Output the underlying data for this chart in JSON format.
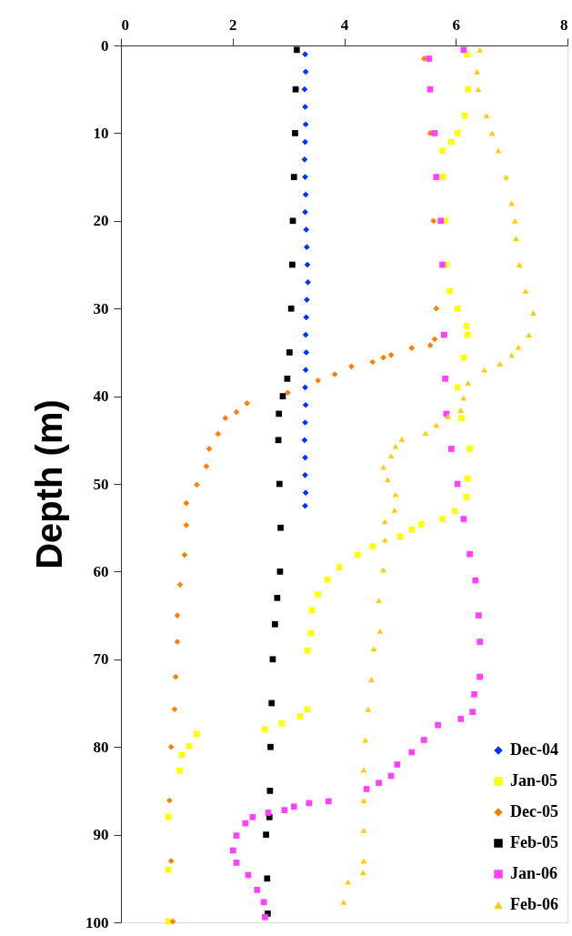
{
  "chart_data": {
    "type": "scatter",
    "ylabel": "Depth (m)",
    "xlim": [
      0,
      8
    ],
    "xticks": [
      0,
      2,
      4,
      6,
      8
    ],
    "ylim": [
      100,
      0
    ],
    "yticks": [
      0,
      10,
      20,
      30,
      40,
      50,
      60,
      70,
      80,
      90,
      100
    ],
    "grid": false,
    "legend": "bottom right",
    "series": [
      {
        "name": "Dec-04",
        "color": "#0033ff",
        "marker": "diamond",
        "x": [
          3.3,
          3.31,
          3.29,
          3.3,
          3.31,
          3.3,
          3.29,
          3.3,
          3.31,
          3.3,
          3.32,
          3.33,
          3.34,
          3.35,
          3.33,
          3.32,
          3.31,
          3.32,
          3.31,
          3.3,
          3.31,
          3.3,
          3.29,
          3.3,
          3.3,
          3.31,
          3.3
        ],
        "values": [
          1,
          3,
          5,
          7,
          9,
          11,
          13,
          15,
          17,
          19,
          21,
          23,
          25,
          27,
          29,
          31,
          33,
          35,
          37,
          39,
          41,
          43,
          45,
          47,
          49,
          51,
          52.5
        ]
      },
      {
        "name": "Jan-05",
        "color": "#ffff00",
        "marker": "square",
        "x": [
          6.2,
          6.22,
          6.16,
          6.03,
          5.92,
          5.76,
          5.77,
          5.81,
          5.83,
          5.89,
          6.03,
          6.19,
          6.21,
          6.14,
          6.03,
          6.1,
          6.25,
          6.21,
          6.19,
          5.98,
          5.76,
          5.38,
          5.21,
          5.0,
          4.51,
          4.24,
          3.91,
          3.7,
          3.53,
          3.42,
          3.4,
          3.34,
          3.34,
          3.21,
          2.88,
          2.58,
          1.36,
          1.22,
          1.09,
          1.05,
          0.85,
          0.85,
          0.85
        ],
        "values": [
          1,
          5,
          8,
          10,
          11,
          12,
          15,
          20,
          25,
          28,
          30,
          32,
          33,
          35.6,
          39,
          42.5,
          46,
          49.4,
          51.5,
          53.1,
          54,
          54.6,
          55.2,
          56,
          57.1,
          58.1,
          59.5,
          60.9,
          62.6,
          64.4,
          67,
          69,
          75.7,
          76.5,
          77.3,
          78,
          78.5,
          79.9,
          80.9,
          82.7,
          88,
          94,
          99.9
        ]
      },
      {
        "name": "Dec-05",
        "color": "#ff7f00",
        "marker": "diamond",
        "x": [
          5.43,
          5.54,
          5.6,
          5.65,
          5.62,
          5.54,
          5.21,
          4.84,
          4.7,
          4.51,
          4.13,
          3.83,
          3.53,
          2.99,
          2.26,
          2.07,
          1.87,
          1.74,
          1.58,
          1.53,
          1.36,
          1.17,
          1.17,
          1.14,
          1.06,
          1.01,
          1.01,
          0.98,
          0.96,
          0.9,
          0.87,
          0.9,
          0.93
        ],
        "values": [
          1.5,
          10,
          20,
          30,
          33.5,
          34.2,
          34.5,
          35.3,
          35.6,
          36.1,
          36.6,
          37.5,
          38.2,
          39.6,
          40.8,
          41.8,
          42.5,
          44.3,
          46,
          48,
          50.1,
          52.2,
          54.7,
          58.1,
          61.5,
          65,
          68,
          72,
          75.7,
          80,
          86.1,
          93,
          99.9
        ]
      },
      {
        "name": "Feb-05",
        "color": "#000000",
        "marker": "square",
        "x": [
          3.15,
          3.13,
          3.12,
          3.1,
          3.08,
          3.07,
          3.05,
          3.02,
          2.98,
          2.9,
          2.83,
          2.82,
          2.84,
          2.86,
          2.85,
          2.8,
          2.76,
          2.72,
          2.7,
          2.68,
          2.67,
          2.66,
          2.6,
          2.62,
          2.63
        ],
        "values": [
          0.5,
          5,
          10,
          15,
          20,
          25,
          30,
          35,
          38,
          40,
          42,
          45,
          50,
          55,
          60,
          63,
          66,
          70,
          75,
          80,
          85,
          88,
          90,
          95,
          99
        ]
      },
      {
        "name": "Jan-06",
        "color": "#ff40ff",
        "marker": "square",
        "x": [
          6.14,
          5.52,
          5.54,
          5.62,
          5.65,
          5.73,
          5.76,
          5.79,
          5.81,
          5.83,
          5.92,
          6.03,
          6.14,
          6.25,
          6.35,
          6.41,
          6.43,
          6.43,
          6.33,
          6.3,
          6.09,
          5.68,
          5.43,
          5.21,
          4.95,
          4.84,
          4.62,
          4.4,
          3.72,
          3.37,
          3.1,
          2.93,
          2.64,
          2.36,
          2.23,
          2.07,
          2.01,
          2.07,
          2.28,
          2.44,
          2.56,
          2.58
        ],
        "values": [
          0.5,
          1.5,
          5,
          10,
          15,
          20,
          25,
          33,
          38,
          42,
          46,
          50,
          54,
          58,
          61,
          65,
          68,
          72,
          74,
          76,
          76.8,
          77.5,
          79.2,
          80.6,
          82,
          83.3,
          84.1,
          84.8,
          86.2,
          86.4,
          86.8,
          87.2,
          87.5,
          88,
          88.7,
          90.1,
          91.8,
          93.2,
          94.6,
          96.3,
          97.7,
          99.4
        ]
      },
      {
        "name": "Feb-06",
        "color": "#ffcc00",
        "marker": "triangle",
        "x": [
          6.43,
          6.38,
          6.4,
          6.55,
          6.65,
          6.76,
          6.9,
          7.0,
          7.06,
          7.08,
          7.14,
          7.25,
          7.39,
          7.31,
          7.12,
          7.0,
          6.79,
          6.51,
          6.22,
          6.14,
          6.09,
          5.86,
          5.65,
          5.46,
          5.03,
          4.92,
          4.84,
          4.7,
          4.78,
          4.92,
          4.9,
          4.73,
          4.73,
          4.7,
          4.62,
          4.64,
          4.53,
          4.49,
          4.43,
          4.38,
          4.35,
          4.35,
          4.35,
          4.35,
          4.34,
          4.07,
          3.99
        ],
        "values": [
          0.5,
          3,
          5,
          8,
          10,
          12,
          15,
          18,
          20,
          22,
          25,
          28,
          30.5,
          33,
          34.4,
          35.3,
          36.3,
          37,
          38.5,
          40.2,
          41.6,
          42.3,
          43.3,
          44.2,
          44.9,
          45.7,
          46.8,
          48.1,
          49.5,
          51.2,
          53,
          54.3,
          56.4,
          59.8,
          63.3,
          66.8,
          68.8,
          72.3,
          75.7,
          79.2,
          82.6,
          86.1,
          89.5,
          93,
          94.3,
          95.4,
          97.7
        ]
      }
    ]
  }
}
